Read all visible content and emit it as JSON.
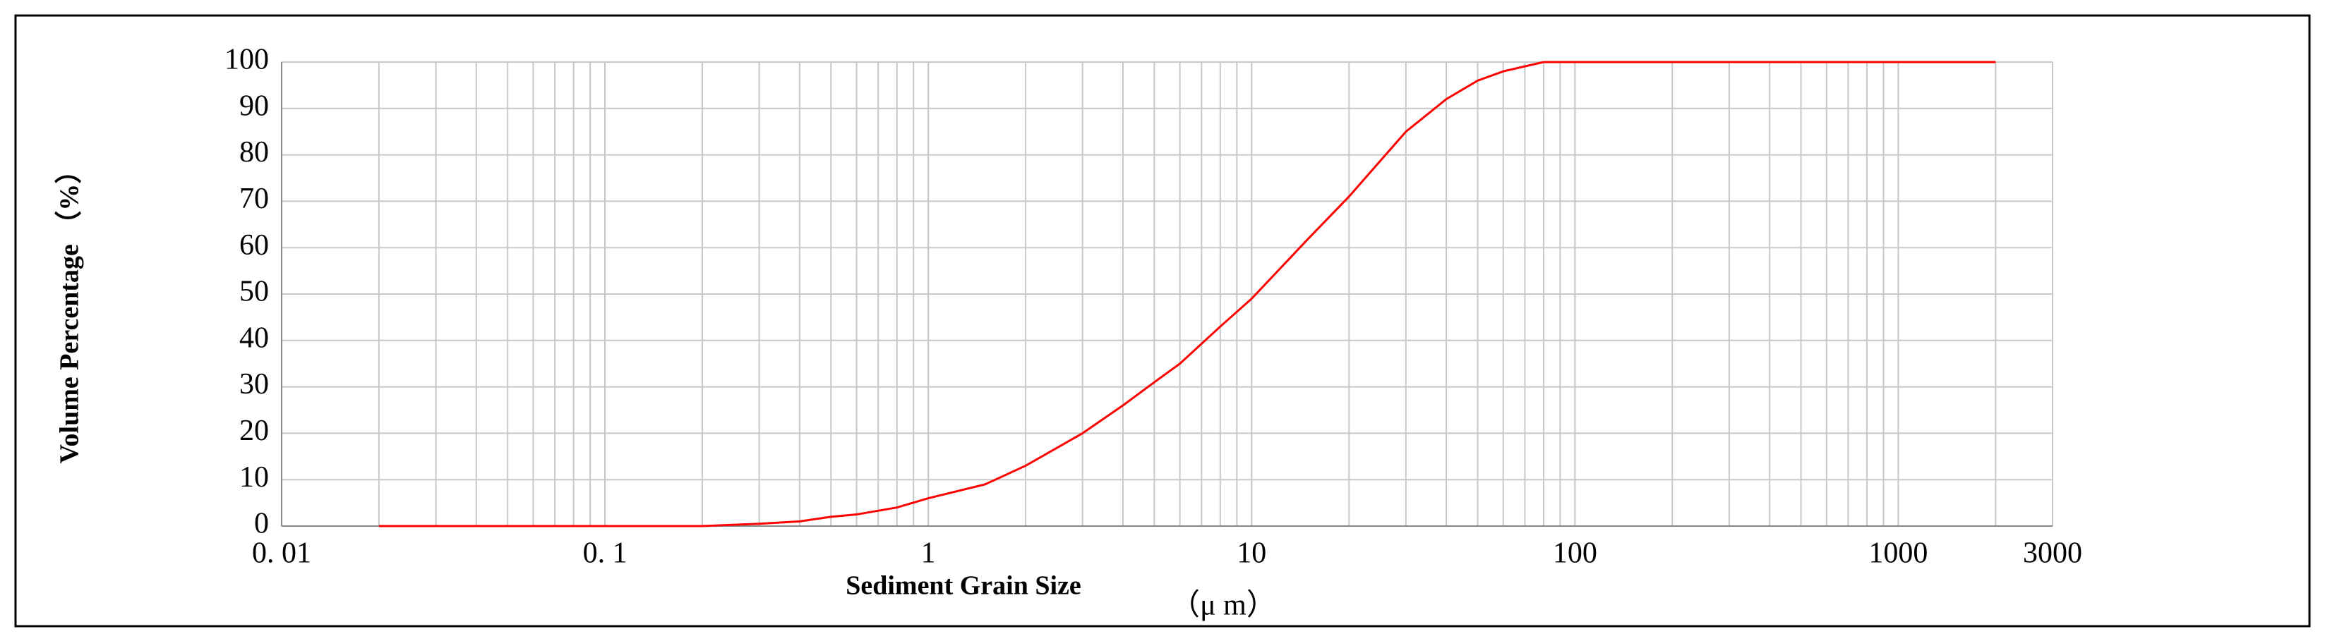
{
  "chart_data": {
    "type": "line",
    "y_label": "Volume Percentage （%）",
    "x_label": "Sediment Grain Size",
    "x_unit": "（μ m）",
    "x_log": true,
    "grid": true,
    "xlim": [
      0.01,
      3000
    ],
    "xticks": [
      {
        "value": 0.01,
        "label": "0. 01"
      },
      {
        "value": 0.1,
        "label": "0. 1"
      },
      1,
      10,
      100,
      1000,
      3000
    ],
    "ylim": [
      0,
      100
    ],
    "yticks": [
      0,
      10,
      20,
      30,
      40,
      50,
      60,
      70,
      80,
      90,
      100
    ],
    "x": [
      0.02,
      0.05,
      0.1,
      0.2,
      0.3,
      0.4,
      0.5,
      0.6,
      0.8,
      1,
      1.5,
      2,
      3,
      4,
      5,
      6,
      8,
      10,
      15,
      20,
      30,
      40,
      50,
      60,
      80,
      100,
      500,
      2000
    ],
    "series": [
      {
        "color": "#ff0000",
        "values": [
          0,
          0,
          0,
          0,
          0.5,
          1,
          2,
          2.5,
          4,
          6,
          9,
          13,
          20,
          26,
          31,
          35,
          43,
          49,
          62,
          71,
          85,
          92,
          96,
          98,
          100,
          100,
          100,
          100
        ]
      }
    ]
  }
}
